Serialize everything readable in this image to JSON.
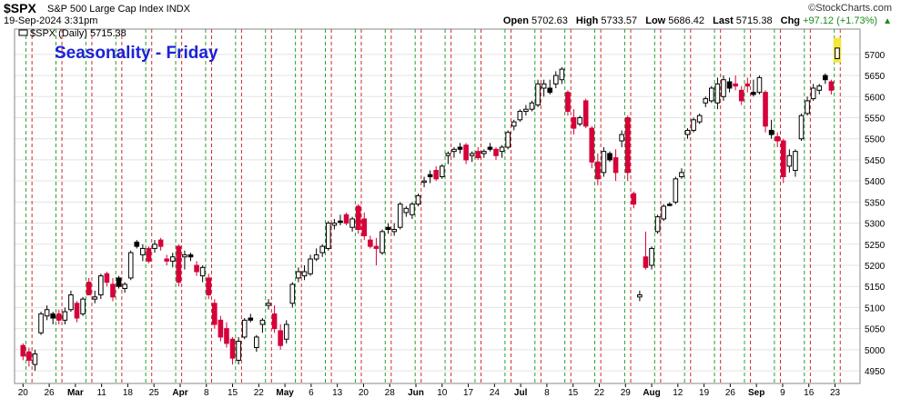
{
  "header": {
    "symbol": "$SPX",
    "description": "S&P 500 Large Cap Index INDX",
    "datetime": "19-Sep-2024 3:31pm",
    "brand": "©StockCharts.com",
    "open_label": "Open",
    "open": "5702.63",
    "high_label": "High",
    "high": "5733.57",
    "low_label": "Low",
    "low": "5686.42",
    "last_label": "Last",
    "last": "5715.38",
    "chg_label": "Chg",
    "chg": "+97.12 (+1.73%)"
  },
  "legend": "$SPX (Daily) 5715.38",
  "chart_data": {
    "type": "candlestick",
    "title": "Seasonality - Friday",
    "title_color": "#1c22d8",
    "ylim": [
      4920,
      5760
    ],
    "yticks": [
      4950,
      5000,
      5050,
      5100,
      5150,
      5200,
      5250,
      5300,
      5350,
      5400,
      5450,
      5500,
      5550,
      5600,
      5650,
      5700
    ],
    "xticks": [
      "20",
      "26",
      "Mar",
      "11",
      "18",
      "25",
      "Apr",
      "8",
      "15",
      "22",
      "May",
      "6",
      "13",
      "20",
      "28",
      "Jun",
      "10",
      "17",
      "24",
      "Jul",
      "8",
      "15",
      "22",
      "29",
      "Aug",
      "12",
      "19",
      "26",
      "Sep",
      "9",
      "16",
      "23"
    ],
    "xticks_bold": [
      "Mar",
      "Apr",
      "May",
      "Jun",
      "Jul",
      "Aug",
      "Sep"
    ],
    "up_color": "#ffffff",
    "down_color": "#d6003b",
    "last_color": "#f5e63c",
    "friday_line_color": "#2e9e2e",
    "week_start_line_color": "#d62828",
    "grid": true,
    "candles": [
      {
        "o": 4985,
        "h": 5015,
        "l": 4975,
        "c": 5010,
        "d": "down"
      },
      {
        "o": 4995,
        "h": 5005,
        "l": 4960,
        "c": 4975,
        "d": "down"
      },
      {
        "o": 4965,
        "h": 5000,
        "l": 4950,
        "c": 4990,
        "d": "up"
      },
      {
        "o": 5040,
        "h": 5090,
        "l": 5035,
        "c": 5085,
        "d": "up"
      },
      {
        "o": 5080,
        "h": 5105,
        "l": 5070,
        "c": 5095,
        "d": "up"
      },
      {
        "o": 5075,
        "h": 5090,
        "l": 5060,
        "c": 5085,
        "d": "black"
      },
      {
        "o": 5085,
        "h": 5095,
        "l": 5060,
        "c": 5070,
        "d": "down"
      },
      {
        "o": 5070,
        "h": 5100,
        "l": 5060,
        "c": 5090,
        "d": "up"
      },
      {
        "o": 5095,
        "h": 5140,
        "l": 5090,
        "c": 5130,
        "d": "up"
      },
      {
        "o": 5110,
        "h": 5115,
        "l": 5065,
        "c": 5075,
        "d": "down"
      },
      {
        "o": 5085,
        "h": 5125,
        "l": 5080,
        "c": 5120,
        "d": "up"
      },
      {
        "o": 5160,
        "h": 5170,
        "l": 5130,
        "c": 5130,
        "d": "down"
      },
      {
        "o": 5125,
        "h": 5140,
        "l": 5110,
        "c": 5120,
        "d": "up"
      },
      {
        "o": 5130,
        "h": 5180,
        "l": 5120,
        "c": 5175,
        "d": "up"
      },
      {
        "o": 5180,
        "h": 5185,
        "l": 5150,
        "c": 5160,
        "d": "down"
      },
      {
        "o": 5155,
        "h": 5170,
        "l": 5115,
        "c": 5125,
        "d": "down"
      },
      {
        "o": 5150,
        "h": 5175,
        "l": 5145,
        "c": 5170,
        "d": "black"
      },
      {
        "o": 5145,
        "h": 5160,
        "l": 5135,
        "c": 5155,
        "d": "up"
      },
      {
        "o": 5170,
        "h": 5235,
        "l": 5165,
        "c": 5230,
        "d": "up"
      },
      {
        "o": 5245,
        "h": 5260,
        "l": 5240,
        "c": 5255,
        "d": "black"
      },
      {
        "o": 5240,
        "h": 5250,
        "l": 5210,
        "c": 5225,
        "d": "up"
      },
      {
        "o": 5240,
        "h": 5245,
        "l": 5205,
        "c": 5210,
        "d": "down"
      },
      {
        "o": 5240,
        "h": 5260,
        "l": 5230,
        "c": 5250,
        "d": "up"
      },
      {
        "o": 5260,
        "h": 5265,
        "l": 5235,
        "c": 5245,
        "d": "down"
      },
      {
        "o": 5215,
        "h": 5225,
        "l": 5200,
        "c": 5210,
        "d": "down"
      },
      {
        "o": 5210,
        "h": 5230,
        "l": 5195,
        "c": 5220,
        "d": "up"
      },
      {
        "o": 5245,
        "h": 5250,
        "l": 5150,
        "c": 5160,
        "d": "down"
      },
      {
        "o": 5225,
        "h": 5235,
        "l": 5190,
        "c": 5220,
        "d": "up"
      },
      {
        "o": 5220,
        "h": 5230,
        "l": 5210,
        "c": 5225,
        "d": "black"
      },
      {
        "o": 5200,
        "h": 5210,
        "l": 5175,
        "c": 5185,
        "d": "down"
      },
      {
        "o": 5175,
        "h": 5200,
        "l": 5160,
        "c": 5195,
        "d": "up"
      },
      {
        "o": 5170,
        "h": 5180,
        "l": 5120,
        "c": 5130,
        "d": "down"
      },
      {
        "o": 5110,
        "h": 5120,
        "l": 5050,
        "c": 5060,
        "d": "down"
      },
      {
        "o": 5070,
        "h": 5080,
        "l": 5020,
        "c": 5030,
        "d": "down"
      },
      {
        "o": 5050,
        "h": 5065,
        "l": 5005,
        "c": 5015,
        "d": "down"
      },
      {
        "o": 5025,
        "h": 5030,
        "l": 4965,
        "c": 4980,
        "d": "down"
      },
      {
        "o": 4975,
        "h": 5030,
        "l": 4965,
        "c": 5020,
        "d": "up"
      },
      {
        "o": 5030,
        "h": 5075,
        "l": 5025,
        "c": 5070,
        "d": "up"
      },
      {
        "o": 5070,
        "h": 5085,
        "l": 5065,
        "c": 5075,
        "d": "black"
      },
      {
        "o": 5005,
        "h": 5035,
        "l": 4995,
        "c": 5030,
        "d": "up"
      },
      {
        "o": 5060,
        "h": 5075,
        "l": 5040,
        "c": 5070,
        "d": "up"
      },
      {
        "o": 5110,
        "h": 5120,
        "l": 5095,
        "c": 5105,
        "d": "up"
      },
      {
        "o": 5085,
        "h": 5105,
        "l": 5040,
        "c": 5050,
        "d": "down"
      },
      {
        "o": 5045,
        "h": 5060,
        "l": 5000,
        "c": 5010,
        "d": "down"
      },
      {
        "o": 5025,
        "h": 5070,
        "l": 5015,
        "c": 5060,
        "d": "up"
      },
      {
        "o": 5110,
        "h": 5160,
        "l": 5100,
        "c": 5155,
        "d": "up"
      },
      {
        "o": 5170,
        "h": 5195,
        "l": 5160,
        "c": 5185,
        "d": "up"
      },
      {
        "o": 5175,
        "h": 5200,
        "l": 5165,
        "c": 5185,
        "d": "up"
      },
      {
        "o": 5180,
        "h": 5225,
        "l": 5175,
        "c": 5215,
        "d": "up"
      },
      {
        "o": 5215,
        "h": 5240,
        "l": 5210,
        "c": 5225,
        "d": "up"
      },
      {
        "o": 5230,
        "h": 5250,
        "l": 5220,
        "c": 5245,
        "d": "up"
      },
      {
        "o": 5240,
        "h": 5305,
        "l": 5235,
        "c": 5300,
        "d": "up"
      },
      {
        "o": 5295,
        "h": 5310,
        "l": 5285,
        "c": 5300,
        "d": "up"
      },
      {
        "o": 5305,
        "h": 5320,
        "l": 5295,
        "c": 5305,
        "d": "black"
      },
      {
        "o": 5320,
        "h": 5325,
        "l": 5295,
        "c": 5300,
        "d": "down"
      },
      {
        "o": 5290,
        "h": 5315,
        "l": 5280,
        "c": 5310,
        "d": "up"
      },
      {
        "o": 5340,
        "h": 5345,
        "l": 5275,
        "c": 5285,
        "d": "down"
      },
      {
        "o": 5310,
        "h": 5325,
        "l": 5260,
        "c": 5270,
        "d": "down"
      },
      {
        "o": 5245,
        "h": 5270,
        "l": 5240,
        "c": 5260,
        "d": "down"
      },
      {
        "o": 5240,
        "h": 5265,
        "l": 5200,
        "c": 5245,
        "d": "down"
      },
      {
        "o": 5230,
        "h": 5285,
        "l": 5225,
        "c": 5280,
        "d": "up"
      },
      {
        "o": 5285,
        "h": 5300,
        "l": 5275,
        "c": 5290,
        "d": "black"
      },
      {
        "o": 5280,
        "h": 5300,
        "l": 5270,
        "c": 5285,
        "d": "up"
      },
      {
        "o": 5290,
        "h": 5350,
        "l": 5285,
        "c": 5345,
        "d": "up"
      },
      {
        "o": 5325,
        "h": 5340,
        "l": 5315,
        "c": 5335,
        "d": "up"
      },
      {
        "o": 5320,
        "h": 5350,
        "l": 5310,
        "c": 5345,
        "d": "up"
      },
      {
        "o": 5345,
        "h": 5370,
        "l": 5340,
        "c": 5365,
        "d": "up"
      },
      {
        "o": 5400,
        "h": 5410,
        "l": 5385,
        "c": 5400,
        "d": "up"
      },
      {
        "o": 5415,
        "h": 5425,
        "l": 5395,
        "c": 5410,
        "d": "black"
      },
      {
        "o": 5425,
        "h": 5435,
        "l": 5400,
        "c": 5405,
        "d": "down"
      },
      {
        "o": 5410,
        "h": 5440,
        "l": 5405,
        "c": 5435,
        "d": "up"
      },
      {
        "o": 5465,
        "h": 5470,
        "l": 5440,
        "c": 5460,
        "d": "up"
      },
      {
        "o": 5470,
        "h": 5480,
        "l": 5455,
        "c": 5475,
        "d": "up"
      },
      {
        "o": 5480,
        "h": 5490,
        "l": 5465,
        "c": 5475,
        "d": "black"
      },
      {
        "o": 5485,
        "h": 5490,
        "l": 5440,
        "c": 5450,
        "d": "down"
      },
      {
        "o": 5460,
        "h": 5470,
        "l": 5445,
        "c": 5465,
        "d": "up"
      },
      {
        "o": 5470,
        "h": 5480,
        "l": 5450,
        "c": 5455,
        "d": "down"
      },
      {
        "o": 5465,
        "h": 5475,
        "l": 5455,
        "c": 5470,
        "d": "up"
      },
      {
        "o": 5480,
        "h": 5490,
        "l": 5470,
        "c": 5475,
        "d": "black"
      },
      {
        "o": 5475,
        "h": 5480,
        "l": 5450,
        "c": 5460,
        "d": "down"
      },
      {
        "o": 5470,
        "h": 5485,
        "l": 5455,
        "c": 5480,
        "d": "up"
      },
      {
        "o": 5480,
        "h": 5520,
        "l": 5475,
        "c": 5515,
        "d": "up"
      },
      {
        "o": 5530,
        "h": 5545,
        "l": 5520,
        "c": 5540,
        "d": "up"
      },
      {
        "o": 5545,
        "h": 5570,
        "l": 5540,
        "c": 5565,
        "d": "up"
      },
      {
        "o": 5565,
        "h": 5580,
        "l": 5555,
        "c": 5570,
        "d": "up"
      },
      {
        "o": 5570,
        "h": 5590,
        "l": 5565,
        "c": 5585,
        "d": "up"
      },
      {
        "o": 5580,
        "h": 5640,
        "l": 5575,
        "c": 5630,
        "d": "up"
      },
      {
        "o": 5620,
        "h": 5640,
        "l": 5600,
        "c": 5630,
        "d": "up"
      },
      {
        "o": 5620,
        "h": 5640,
        "l": 5605,
        "c": 5610,
        "d": "black"
      },
      {
        "o": 5630,
        "h": 5660,
        "l": 5620,
        "c": 5650,
        "d": "up"
      },
      {
        "o": 5640,
        "h": 5670,
        "l": 5630,
        "c": 5665,
        "d": "up"
      },
      {
        "o": 5610,
        "h": 5615,
        "l": 5555,
        "c": 5565,
        "d": "down"
      },
      {
        "o": 5550,
        "h": 5570,
        "l": 5510,
        "c": 5525,
        "d": "down"
      },
      {
        "o": 5535,
        "h": 5555,
        "l": 5530,
        "c": 5550,
        "d": "up"
      },
      {
        "o": 5590,
        "h": 5595,
        "l": 5525,
        "c": 5530,
        "d": "down"
      },
      {
        "o": 5525,
        "h": 5530,
        "l": 5430,
        "c": 5445,
        "d": "down"
      },
      {
        "o": 5445,
        "h": 5465,
        "l": 5390,
        "c": 5405,
        "d": "down"
      },
      {
        "o": 5420,
        "h": 5480,
        "l": 5410,
        "c": 5470,
        "d": "up"
      },
      {
        "o": 5465,
        "h": 5470,
        "l": 5445,
        "c": 5450,
        "d": "black"
      },
      {
        "o": 5455,
        "h": 5475,
        "l": 5400,
        "c": 5420,
        "d": "down"
      },
      {
        "o": 5510,
        "h": 5520,
        "l": 5480,
        "c": 5495,
        "d": "up"
      },
      {
        "o": 5550,
        "h": 5555,
        "l": 5400,
        "c": 5420,
        "d": "down"
      },
      {
        "o": 5370,
        "h": 5375,
        "l": 5335,
        "c": 5345,
        "d": "down"
      },
      {
        "o": 5130,
        "h": 5140,
        "l": 5115,
        "c": 5125,
        "d": "up"
      },
      {
        "o": 5220,
        "h": 5280,
        "l": 5190,
        "c": 5195,
        "d": "down"
      },
      {
        "o": 5200,
        "h": 5245,
        "l": 5190,
        "c": 5240,
        "d": "up"
      },
      {
        "o": 5280,
        "h": 5320,
        "l": 5275,
        "c": 5315,
        "d": "up"
      },
      {
        "o": 5310,
        "h": 5345,
        "l": 5305,
        "c": 5340,
        "d": "up"
      },
      {
        "o": 5345,
        "h": 5350,
        "l": 5340,
        "c": 5345,
        "d": "black"
      },
      {
        "o": 5350,
        "h": 5410,
        "l": 5345,
        "c": 5405,
        "d": "up"
      },
      {
        "o": 5410,
        "h": 5430,
        "l": 5405,
        "c": 5420,
        "d": "up"
      },
      {
        "o": 5510,
        "h": 5525,
        "l": 5500,
        "c": 5520,
        "d": "up"
      },
      {
        "o": 5520,
        "h": 5550,
        "l": 5515,
        "c": 5545,
        "d": "up"
      },
      {
        "o": 5540,
        "h": 5560,
        "l": 5535,
        "c": 5555,
        "d": "up"
      },
      {
        "o": 5585,
        "h": 5600,
        "l": 5575,
        "c": 5595,
        "d": "up"
      },
      {
        "o": 5590,
        "h": 5625,
        "l": 5585,
        "c": 5620,
        "d": "up"
      },
      {
        "o": 5630,
        "h": 5645,
        "l": 5570,
        "c": 5585,
        "d": "up"
      },
      {
        "o": 5600,
        "h": 5650,
        "l": 5590,
        "c": 5640,
        "d": "up"
      },
      {
        "o": 5635,
        "h": 5645,
        "l": 5610,
        "c": 5620,
        "d": "black"
      },
      {
        "o": 5630,
        "h": 5650,
        "l": 5615,
        "c": 5625,
        "d": "down"
      },
      {
        "o": 5615,
        "h": 5625,
        "l": 5580,
        "c": 5590,
        "d": "down"
      },
      {
        "o": 5630,
        "h": 5645,
        "l": 5610,
        "c": 5625,
        "d": "down"
      },
      {
        "o": 5610,
        "h": 5640,
        "l": 5600,
        "c": 5605,
        "d": "black"
      },
      {
        "o": 5645,
        "h": 5650,
        "l": 5605,
        "c": 5610,
        "d": "up"
      },
      {
        "o": 5610,
        "h": 5615,
        "l": 5515,
        "c": 5530,
        "d": "down"
      },
      {
        "o": 5520,
        "h": 5545,
        "l": 5500,
        "c": 5510,
        "d": "black"
      },
      {
        "o": 5505,
        "h": 5515,
        "l": 5480,
        "c": 5495,
        "d": "down"
      },
      {
        "o": 5495,
        "h": 5500,
        "l": 5395,
        "c": 5410,
        "d": "down"
      },
      {
        "o": 5435,
        "h": 5475,
        "l": 5420,
        "c": 5460,
        "d": "up"
      },
      {
        "o": 5425,
        "h": 5475,
        "l": 5410,
        "c": 5470,
        "d": "up"
      },
      {
        "o": 5500,
        "h": 5560,
        "l": 5495,
        "c": 5555,
        "d": "up"
      },
      {
        "o": 5560,
        "h": 5600,
        "l": 5555,
        "c": 5590,
        "d": "up"
      },
      {
        "o": 5595,
        "h": 5630,
        "l": 5590,
        "c": 5620,
        "d": "up"
      },
      {
        "o": 5615,
        "h": 5630,
        "l": 5605,
        "c": 5625,
        "d": "up"
      },
      {
        "o": 5640,
        "h": 5655,
        "l": 5630,
        "c": 5650,
        "d": "black"
      },
      {
        "o": 5635,
        "h": 5640,
        "l": 5605,
        "c": 5615,
        "d": "down"
      },
      {
        "o": 5690,
        "h": 5735,
        "l": 5685,
        "c": 5715,
        "d": "last"
      }
    ],
    "friday_every": 5,
    "friday_offset": 1,
    "week_start_offset": 2
  }
}
